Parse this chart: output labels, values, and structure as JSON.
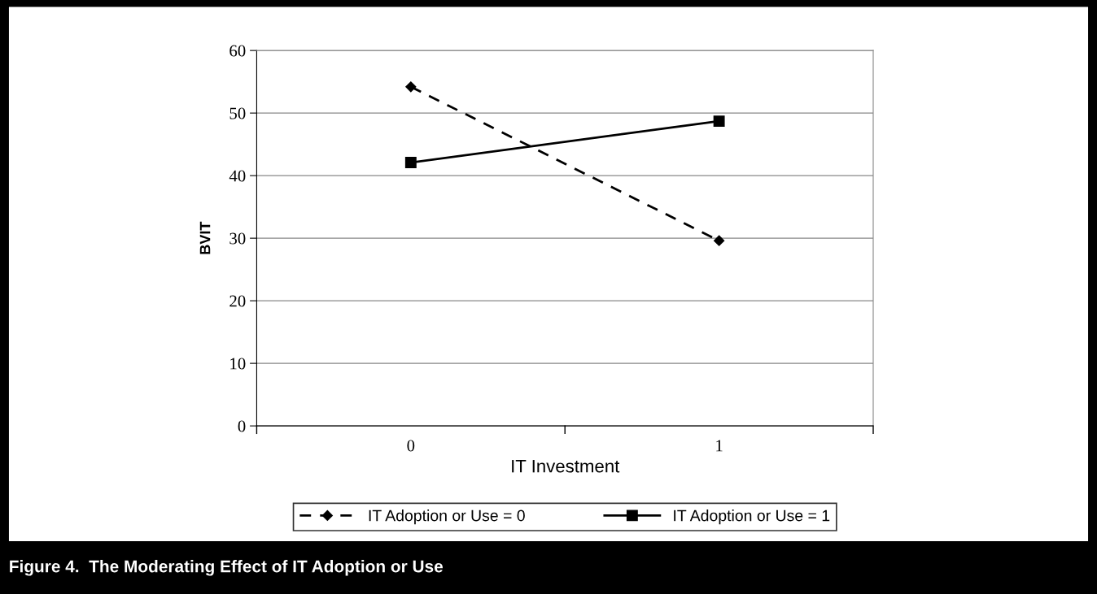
{
  "chart_data": {
    "type": "line",
    "title": "Figure 4.  The Moderating Effect of IT Adoption or Use",
    "xlabel": "IT Investment",
    "ylabel": "BVIT",
    "categories": [
      "0",
      "1"
    ],
    "series": [
      {
        "name": "IT Adoption or Use = 0",
        "color": "#000000",
        "values": [
          54.2,
          29.6
        ],
        "marker": "diamond",
        "line_style": "dashed"
      },
      {
        "name": "IT Adoption or Use = 1",
        "color": "#000000",
        "values": [
          42.1,
          48.7
        ],
        "marker": "square",
        "line_style": "solid"
      }
    ],
    "ylim": [
      0,
      60
    ],
    "yticks": [
      0,
      10,
      20,
      30,
      40,
      50,
      60
    ],
    "grid": "y",
    "legend": "bottom"
  }
}
